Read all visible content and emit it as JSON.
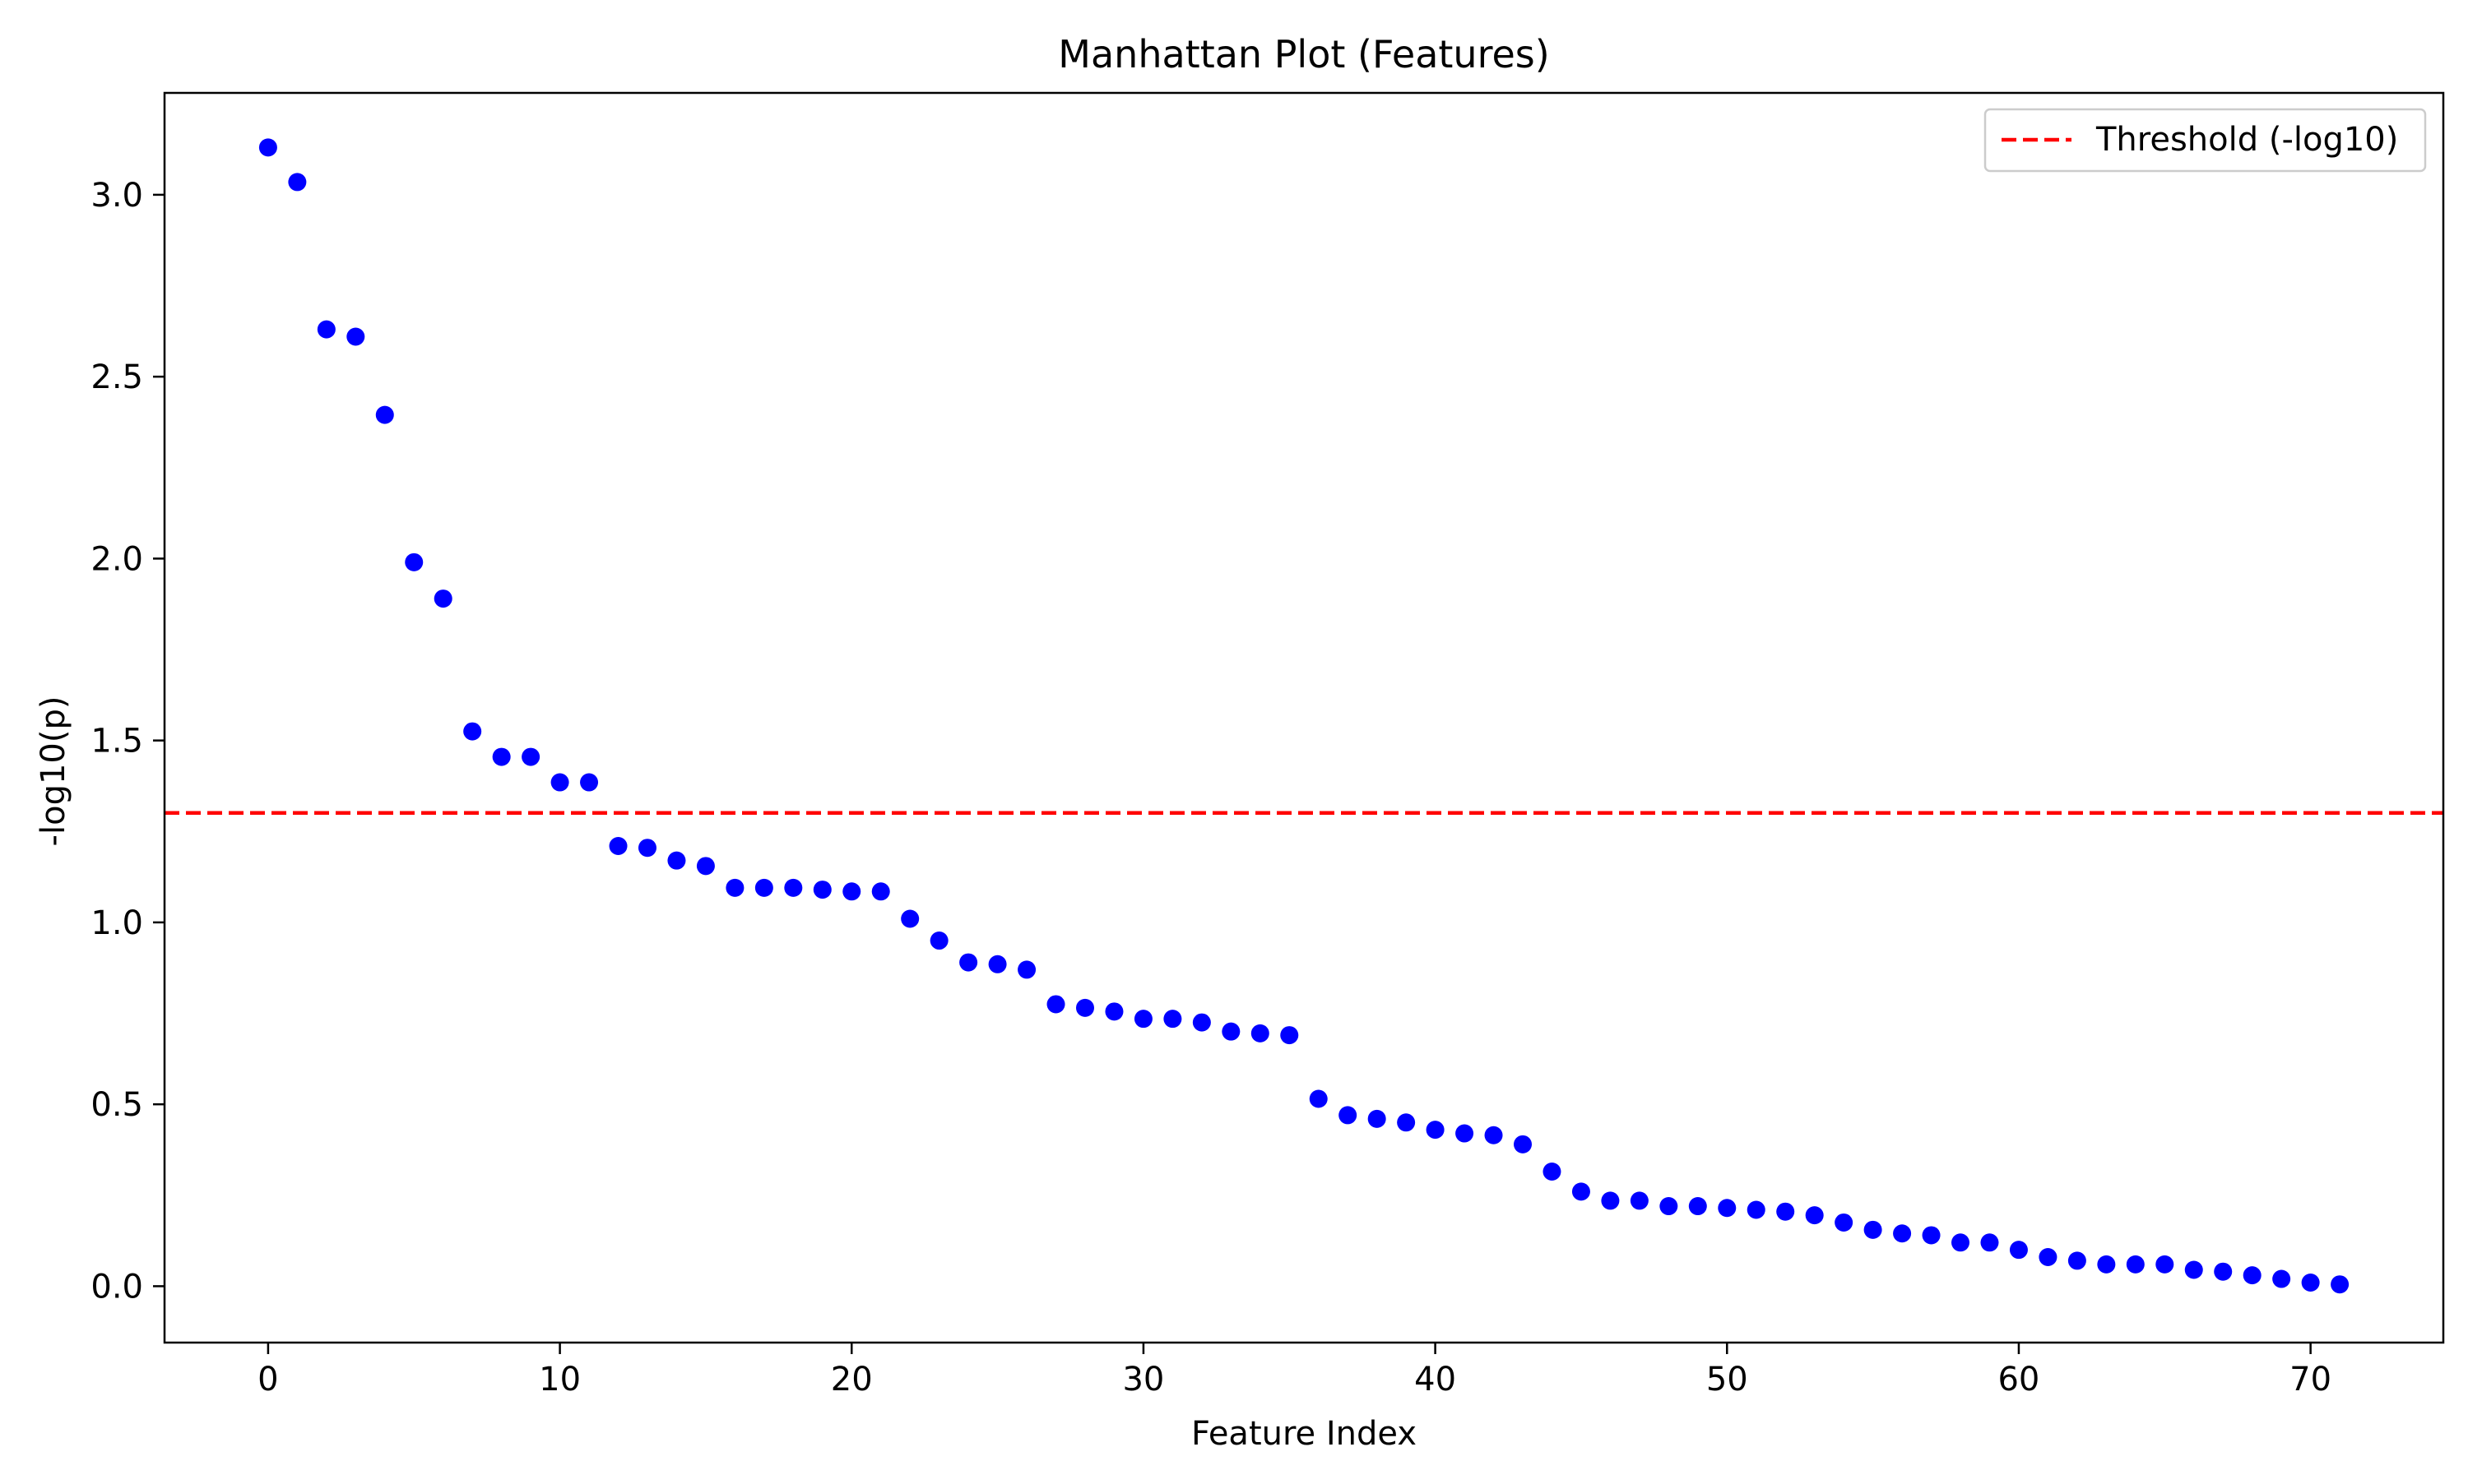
{
  "chart_data": {
    "type": "scatter",
    "title": "Manhattan Plot (Features)",
    "xlabel": "Feature Index",
    "ylabel": "-log10(p)",
    "xlim": [
      -3.55,
      74.55
    ],
    "ylim": [
      -0.155,
      3.28
    ],
    "xticks": [
      0,
      10,
      20,
      30,
      40,
      50,
      60,
      70
    ],
    "yticks": [
      0.0,
      0.5,
      1.0,
      1.5,
      2.0,
      2.5,
      3.0
    ],
    "xtick_labels": [
      "0",
      "10",
      "20",
      "30",
      "40",
      "50",
      "60",
      "70"
    ],
    "ytick_labels": [
      "0.0",
      "0.5",
      "1.0",
      "1.5",
      "2.0",
      "2.5",
      "3.0"
    ],
    "grid": false,
    "legend_position": "top-right",
    "series": [
      {
        "style": "points",
        "color": "#0000ff",
        "x": [
          0,
          1,
          2,
          3,
          4,
          5,
          6,
          7,
          8,
          9,
          10,
          11,
          12,
          13,
          14,
          15,
          16,
          17,
          18,
          19,
          20,
          21,
          22,
          23,
          24,
          25,
          26,
          27,
          28,
          29,
          30,
          31,
          32,
          33,
          34,
          35,
          36,
          37,
          38,
          39,
          40,
          41,
          42,
          43,
          44,
          45,
          46,
          47,
          48,
          49,
          50,
          51,
          52,
          53,
          54,
          55,
          56,
          57,
          58,
          59,
          60,
          61,
          62,
          63,
          64,
          65,
          66,
          67,
          68,
          69,
          70,
          71
        ],
        "y": [
          3.13,
          3.035,
          2.63,
          2.61,
          2.395,
          1.99,
          1.89,
          1.525,
          1.455,
          1.455,
          1.385,
          1.385,
          1.21,
          1.205,
          1.17,
          1.155,
          1.095,
          1.095,
          1.095,
          1.09,
          1.085,
          1.085,
          1.01,
          0.95,
          0.89,
          0.885,
          0.87,
          0.775,
          0.765,
          0.755,
          0.735,
          0.735,
          0.725,
          0.7,
          0.695,
          0.69,
          0.515,
          0.47,
          0.46,
          0.45,
          0.43,
          0.42,
          0.415,
          0.39,
          0.315,
          0.26,
          0.235,
          0.235,
          0.22,
          0.22,
          0.215,
          0.21,
          0.205,
          0.195,
          0.175,
          0.155,
          0.145,
          0.14,
          0.12,
          0.12,
          0.1,
          0.08,
          0.07,
          0.06,
          0.06,
          0.06,
          0.045,
          0.04,
          0.03,
          0.02,
          0.01,
          0.005
        ]
      },
      {
        "name": "Threshold (-log10)",
        "style": "dashed-hline",
        "color": "#ff0000",
        "y": 1.301
      }
    ]
  }
}
